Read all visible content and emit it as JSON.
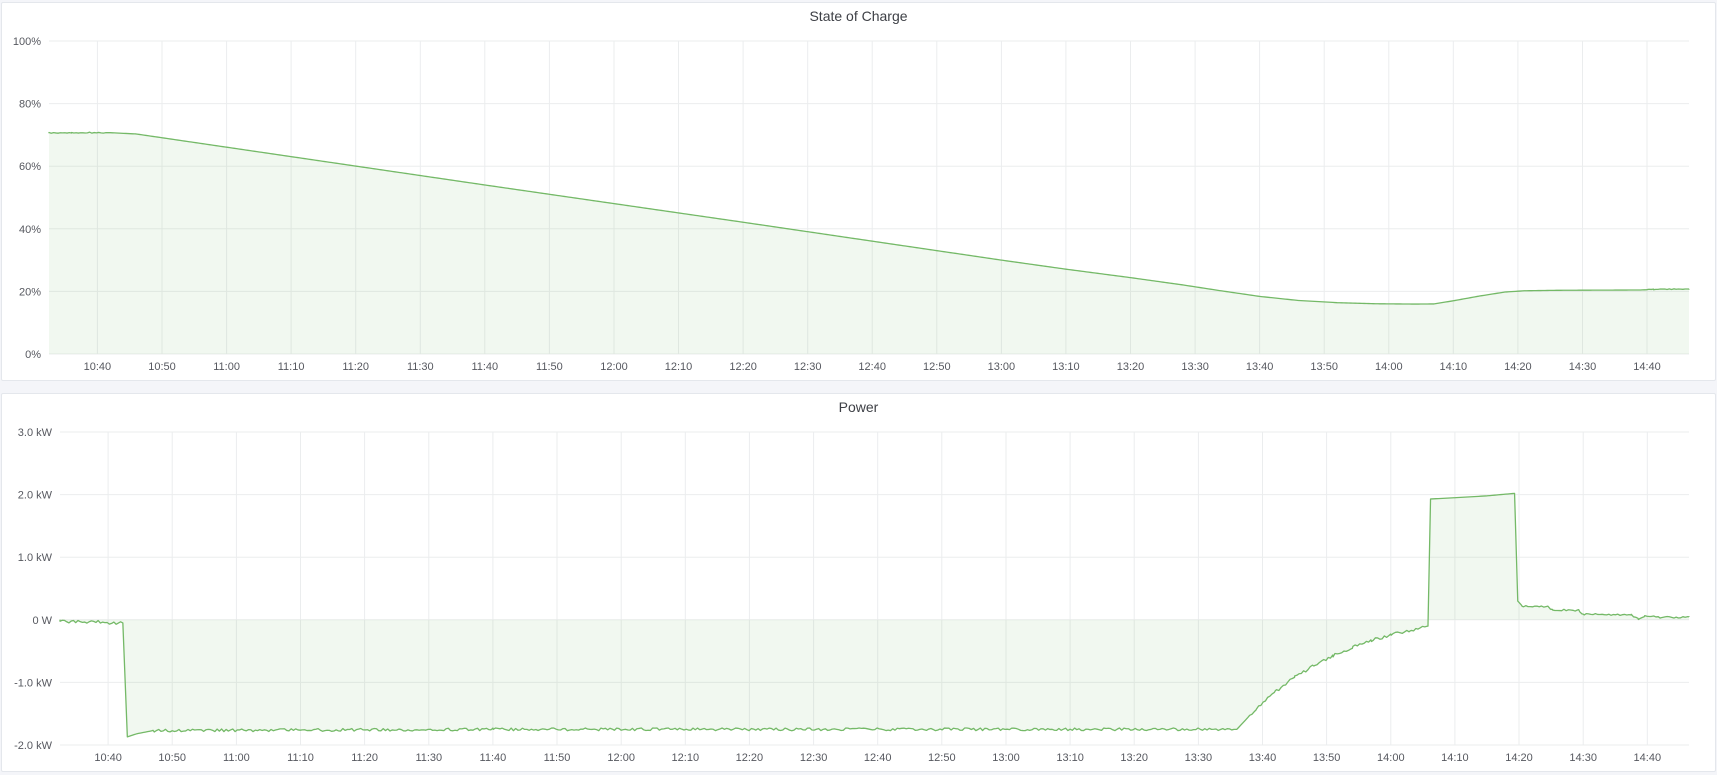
{
  "page": {
    "background_color": "#f4f5f9",
    "panel_background": "#ffffff",
    "panel_border_color": "#e4e7ec",
    "grid_color": "#ebedee",
    "axis_text_color": "#56585f",
    "title_text_color": "#3e4046"
  },
  "chart_data": {
    "type": "area",
    "x_axis": {
      "description": "time of day, minutes since midnight",
      "domain_minutes": [
        632.5,
        886.5
      ],
      "tick_interval_minutes": 10,
      "ticks": [
        {
          "v": 640,
          "label": "10:40"
        },
        {
          "v": 650,
          "label": "10:50"
        },
        {
          "v": 660,
          "label": "11:00"
        },
        {
          "v": 670,
          "label": "11:10"
        },
        {
          "v": 680,
          "label": "11:20"
        },
        {
          "v": 690,
          "label": "11:30"
        },
        {
          "v": 700,
          "label": "11:40"
        },
        {
          "v": 710,
          "label": "11:50"
        },
        {
          "v": 720,
          "label": "12:00"
        },
        {
          "v": 730,
          "label": "12:10"
        },
        {
          "v": 740,
          "label": "12:20"
        },
        {
          "v": 750,
          "label": "12:30"
        },
        {
          "v": 760,
          "label": "12:40"
        },
        {
          "v": 770,
          "label": "12:50"
        },
        {
          "v": 780,
          "label": "13:00"
        },
        {
          "v": 790,
          "label": "13:10"
        },
        {
          "v": 800,
          "label": "13:20"
        },
        {
          "v": 810,
          "label": "13:30"
        },
        {
          "v": 820,
          "label": "13:40"
        },
        {
          "v": 830,
          "label": "13:50"
        },
        {
          "v": 840,
          "label": "14:00"
        },
        {
          "v": 850,
          "label": "14:10"
        },
        {
          "v": 860,
          "label": "14:20"
        },
        {
          "v": 870,
          "label": "14:30"
        },
        {
          "v": 880,
          "label": "14:40"
        }
      ]
    },
    "panels": [
      {
        "title": "State of Charge",
        "series_name": "state-of-charge",
        "unit": "percent",
        "line_color": "#74b967",
        "fill_opacity": 0.1,
        "ylim": [
          0,
          100
        ],
        "baseline_value": 0,
        "y_ticks": [
          {
            "v": 0,
            "label": "0%"
          },
          {
            "v": 20,
            "label": "20%"
          },
          {
            "v": 40,
            "label": "40%"
          },
          {
            "v": 60,
            "label": "60%"
          },
          {
            "v": 80,
            "label": "80%"
          },
          {
            "v": 100,
            "label": "100%"
          }
        ],
        "keypoints": [
          [
            632.5,
            70.6
          ],
          [
            636,
            70.7
          ],
          [
            642,
            70.7
          ],
          [
            646,
            70.3
          ],
          [
            700,
            54.0
          ],
          [
            740,
            42.1
          ],
          [
            780,
            30.0
          ],
          [
            790,
            27.1
          ],
          [
            800,
            24.4
          ],
          [
            808,
            22.1
          ],
          [
            814,
            20.2
          ],
          [
            820,
            18.4
          ],
          [
            826,
            17.1
          ],
          [
            832,
            16.4
          ],
          [
            838,
            16.05
          ],
          [
            844,
            15.95
          ],
          [
            847,
            16.0
          ],
          [
            850,
            17.0
          ],
          [
            854,
            18.5
          ],
          [
            858,
            19.8
          ],
          [
            861,
            20.2
          ],
          [
            866,
            20.35
          ],
          [
            872,
            20.4
          ],
          [
            879,
            20.45
          ],
          [
            881,
            20.65
          ],
          [
            886.5,
            20.75
          ]
        ],
        "noise_regions": [
          {
            "from": 632.5,
            "to": 641,
            "amp": 0.18
          },
          {
            "from": 880,
            "to": 886.5,
            "amp": 0.12
          }
        ]
      },
      {
        "title": "Power",
        "series_name": "power",
        "unit": "kW",
        "line_color": "#74b967",
        "fill_opacity": 0.1,
        "ylim": [
          -2,
          3
        ],
        "baseline_value": 0,
        "y_ticks": [
          {
            "v": -2,
            "label": "-2.0 kW"
          },
          {
            "v": -1,
            "label": "-1.0 kW"
          },
          {
            "v": 0,
            "label": "0 W"
          },
          {
            "v": 1,
            "label": "1.0 kW"
          },
          {
            "v": 2,
            "label": "2.0 kW"
          },
          {
            "v": 3,
            "label": "3.0 kW"
          }
        ],
        "keypoints": [
          [
            632.5,
            -0.02
          ],
          [
            642.3,
            -0.05
          ],
          [
            643.0,
            -1.87
          ],
          [
            644.5,
            -1.82
          ],
          [
            647,
            -1.77
          ],
          [
            700,
            -1.75
          ],
          [
            816,
            -1.75
          ],
          [
            819,
            -1.42
          ],
          [
            822,
            -1.15
          ],
          [
            825,
            -0.92
          ],
          [
            828,
            -0.73
          ],
          [
            831,
            -0.57
          ],
          [
            834,
            -0.44
          ],
          [
            837,
            -0.33
          ],
          [
            840,
            -0.24
          ],
          [
            843,
            -0.17
          ],
          [
            845.8,
            -0.1
          ],
          [
            846.2,
            1.93
          ],
          [
            850,
            1.95
          ],
          [
            855,
            1.98
          ],
          [
            859.3,
            2.02
          ],
          [
            859.8,
            0.3
          ],
          [
            860.5,
            0.22
          ],
          [
            864.5,
            0.21
          ],
          [
            865.2,
            0.16
          ],
          [
            869.3,
            0.15
          ],
          [
            870,
            0.09
          ],
          [
            877.5,
            0.08
          ],
          [
            878.6,
            0.01
          ],
          [
            879.5,
            0.06
          ],
          [
            882,
            0.04
          ],
          [
            886.5,
            0.04
          ]
        ],
        "noise_regions": [
          {
            "from": 632.5,
            "to": 642.2,
            "amp": 0.03
          },
          {
            "from": 647,
            "to": 815.5,
            "amp": 0.022
          },
          {
            "from": 818,
            "to": 845,
            "amp": 0.025
          },
          {
            "from": 860.5,
            "to": 886.5,
            "amp": 0.013
          }
        ]
      }
    ]
  }
}
